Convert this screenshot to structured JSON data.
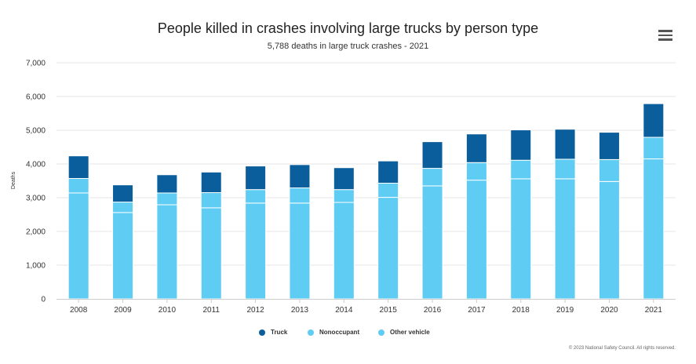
{
  "header": {
    "title": "People killed in crashes involving large trucks by person type",
    "subtitle": "5,788 deaths in large truck crashes - 2021"
  },
  "menu": {
    "icon": "hamburger-menu-icon"
  },
  "credit": "© 2023 National Safety Council. All rights reserved.",
  "colors": {
    "truck": "#0A5E9B",
    "nonoccupant": "#5ECCF3",
    "other_vehicle": "#5ECCF3",
    "grid": "#E6E6E6"
  },
  "chart_data": {
    "type": "bar",
    "stacked": true,
    "title": "People killed in crashes involving large trucks by person type",
    "subtitle": "5,788 deaths in large truck crashes - 2021",
    "xlabel": "",
    "ylabel": "Deaths",
    "ylim": [
      0,
      7000
    ],
    "yticks": [
      0,
      1000,
      2000,
      3000,
      4000,
      5000,
      6000,
      7000
    ],
    "ytick_labels": [
      "0",
      "1,000",
      "2,000",
      "3,000",
      "4,000",
      "5,000",
      "6,000",
      "7,000"
    ],
    "grid": true,
    "legend_position": "bottom-center",
    "categories": [
      "2008",
      "2009",
      "2010",
      "2011",
      "2012",
      "2013",
      "2014",
      "2015",
      "2016",
      "2017",
      "2018",
      "2019",
      "2020",
      "2021"
    ],
    "series": [
      {
        "name": "Other vehicle",
        "values": [
          3140,
          2560,
          2790,
          2700,
          2840,
          2840,
          2860,
          3010,
          3350,
          3520,
          3560,
          3560,
          3480,
          4150
        ]
      },
      {
        "name": "Nonoccupant",
        "values": [
          430,
          310,
          350,
          450,
          400,
          450,
          380,
          420,
          520,
          520,
          550,
          580,
          650,
          640
        ]
      },
      {
        "name": "Truck",
        "values": [
          670,
          510,
          540,
          610,
          700,
          690,
          650,
          660,
          790,
          850,
          900,
          890,
          810,
          998
        ]
      }
    ]
  }
}
